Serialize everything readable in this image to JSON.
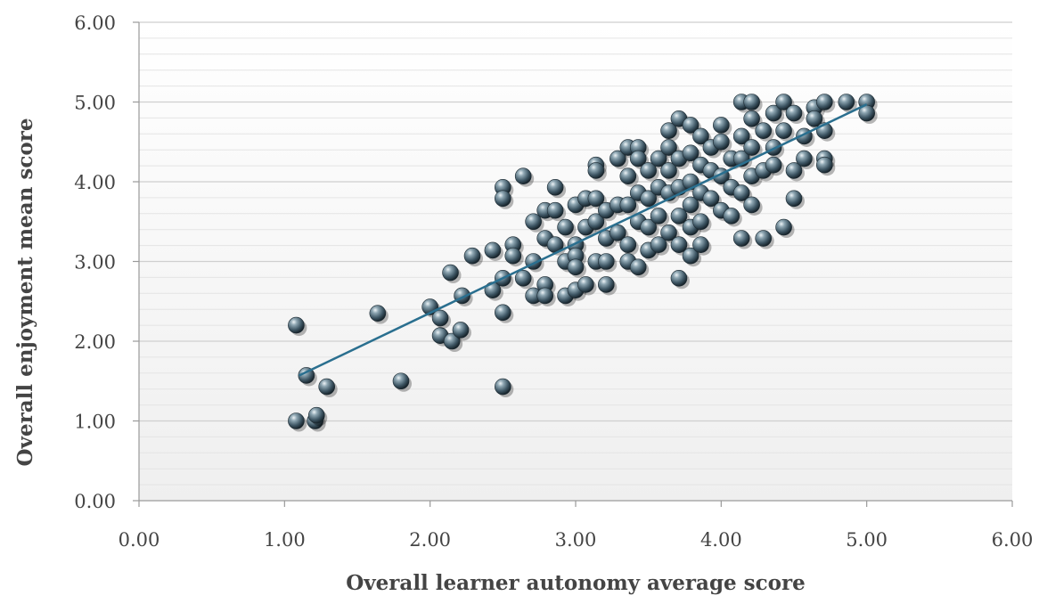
{
  "chart_data": {
    "type": "scatter",
    "title": "",
    "xlabel": "Overall learner autonomy average score",
    "ylabel": "Overall enjoyment mean score",
    "xlim": [
      0,
      6
    ],
    "ylim": [
      0,
      6
    ],
    "x_ticks": [
      "0.00",
      "1.00",
      "2.00",
      "3.00",
      "4.00",
      "5.00",
      "6.00"
    ],
    "y_ticks": [
      "0.00",
      "1.00",
      "2.00",
      "3.00",
      "4.00",
      "5.00",
      "6.00"
    ],
    "grid": true,
    "legend": "none",
    "marker_color": "#3d5563",
    "trendline": {
      "x": [
        1.1,
        5.0
      ],
      "y": [
        1.57,
        4.97
      ],
      "color": "#2a6f8f"
    },
    "points": [
      [
        1.08,
        2.2
      ],
      [
        1.08,
        1.0
      ],
      [
        1.15,
        1.57
      ],
      [
        1.21,
        1.0
      ],
      [
        1.22,
        1.07
      ],
      [
        1.29,
        1.43
      ],
      [
        1.64,
        2.35
      ],
      [
        1.8,
        1.5
      ],
      [
        2.0,
        2.43
      ],
      [
        2.07,
        2.07
      ],
      [
        2.07,
        2.29
      ],
      [
        2.14,
        2.86
      ],
      [
        2.15,
        2.0
      ],
      [
        2.21,
        2.14
      ],
      [
        2.22,
        2.57
      ],
      [
        2.29,
        3.07
      ],
      [
        2.43,
        3.14
      ],
      [
        2.43,
        2.64
      ],
      [
        2.5,
        3.93
      ],
      [
        2.5,
        3.79
      ],
      [
        2.5,
        2.79
      ],
      [
        2.5,
        2.36
      ],
      [
        2.5,
        1.43
      ],
      [
        2.57,
        3.21
      ],
      [
        2.57,
        3.07
      ],
      [
        2.64,
        4.07
      ],
      [
        2.64,
        2.79
      ],
      [
        2.71,
        3.5
      ],
      [
        2.71,
        3.0
      ],
      [
        2.71,
        2.57
      ],
      [
        2.79,
        3.64
      ],
      [
        2.79,
        3.29
      ],
      [
        2.79,
        2.71
      ],
      [
        2.79,
        2.57
      ],
      [
        2.86,
        3.93
      ],
      [
        2.86,
        3.64
      ],
      [
        2.86,
        3.21
      ],
      [
        2.93,
        3.43
      ],
      [
        2.93,
        3.0
      ],
      [
        2.93,
        2.57
      ],
      [
        3.0,
        3.71
      ],
      [
        3.0,
        3.21
      ],
      [
        3.0,
        3.07
      ],
      [
        3.0,
        2.93
      ],
      [
        3.0,
        2.64
      ],
      [
        3.07,
        3.79
      ],
      [
        3.07,
        3.43
      ],
      [
        3.07,
        2.71
      ],
      [
        3.14,
        4.21
      ],
      [
        3.14,
        4.14
      ],
      [
        3.14,
        3.79
      ],
      [
        3.14,
        3.5
      ],
      [
        3.14,
        3.0
      ],
      [
        3.21,
        3.64
      ],
      [
        3.21,
        3.29
      ],
      [
        3.21,
        3.0
      ],
      [
        3.21,
        2.71
      ],
      [
        3.29,
        4.29
      ],
      [
        3.29,
        3.71
      ],
      [
        3.29,
        3.36
      ],
      [
        3.36,
        4.43
      ],
      [
        3.36,
        4.07
      ],
      [
        3.36,
        3.71
      ],
      [
        3.36,
        3.21
      ],
      [
        3.36,
        3.0
      ],
      [
        3.43,
        4.43
      ],
      [
        3.43,
        4.29
      ],
      [
        3.43,
        3.86
      ],
      [
        3.43,
        3.5
      ],
      [
        3.43,
        2.93
      ],
      [
        3.5,
        4.14
      ],
      [
        3.5,
        3.79
      ],
      [
        3.5,
        3.43
      ],
      [
        3.5,
        3.14
      ],
      [
        3.57,
        4.29
      ],
      [
        3.57,
        3.93
      ],
      [
        3.57,
        3.57
      ],
      [
        3.57,
        3.21
      ],
      [
        3.64,
        4.64
      ],
      [
        3.64,
        4.43
      ],
      [
        3.64,
        4.14
      ],
      [
        3.64,
        3.86
      ],
      [
        3.64,
        3.36
      ],
      [
        3.71,
        4.79
      ],
      [
        3.71,
        4.29
      ],
      [
        3.71,
        3.93
      ],
      [
        3.71,
        3.57
      ],
      [
        3.71,
        3.21
      ],
      [
        3.71,
        2.79
      ],
      [
        3.79,
        4.71
      ],
      [
        3.79,
        4.36
      ],
      [
        3.79,
        4.0
      ],
      [
        3.79,
        3.71
      ],
      [
        3.79,
        3.43
      ],
      [
        3.79,
        3.07
      ],
      [
        3.86,
        4.57
      ],
      [
        3.86,
        4.21
      ],
      [
        3.86,
        3.86
      ],
      [
        3.86,
        3.5
      ],
      [
        3.86,
        3.21
      ],
      [
        3.93,
        4.43
      ],
      [
        3.93,
        4.14
      ],
      [
        3.93,
        3.79
      ],
      [
        4.0,
        4.71
      ],
      [
        4.0,
        4.5
      ],
      [
        4.0,
        4.07
      ],
      [
        4.0,
        3.64
      ],
      [
        4.07,
        4.29
      ],
      [
        4.07,
        3.93
      ],
      [
        4.07,
        3.57
      ],
      [
        4.14,
        5.0
      ],
      [
        4.14,
        4.57
      ],
      [
        4.14,
        4.29
      ],
      [
        4.14,
        3.86
      ],
      [
        4.14,
        3.29
      ],
      [
        4.21,
        5.0
      ],
      [
        4.21,
        4.79
      ],
      [
        4.21,
        4.43
      ],
      [
        4.21,
        4.07
      ],
      [
        4.21,
        3.71
      ],
      [
        4.29,
        4.64
      ],
      [
        4.29,
        4.14
      ],
      [
        4.29,
        3.29
      ],
      [
        4.36,
        4.86
      ],
      [
        4.36,
        4.43
      ],
      [
        4.36,
        4.21
      ],
      [
        4.43,
        5.0
      ],
      [
        4.43,
        4.64
      ],
      [
        4.43,
        3.43
      ],
      [
        4.5,
        4.86
      ],
      [
        4.5,
        4.14
      ],
      [
        4.5,
        3.79
      ],
      [
        4.57,
        4.57
      ],
      [
        4.57,
        4.29
      ],
      [
        4.64,
        4.93
      ],
      [
        4.64,
        4.79
      ],
      [
        4.71,
        5.0
      ],
      [
        4.71,
        4.64
      ],
      [
        4.71,
        4.29
      ],
      [
        4.71,
        4.21
      ],
      [
        4.86,
        5.0
      ],
      [
        5.0,
        5.0
      ],
      [
        5.0,
        4.86
      ]
    ]
  }
}
